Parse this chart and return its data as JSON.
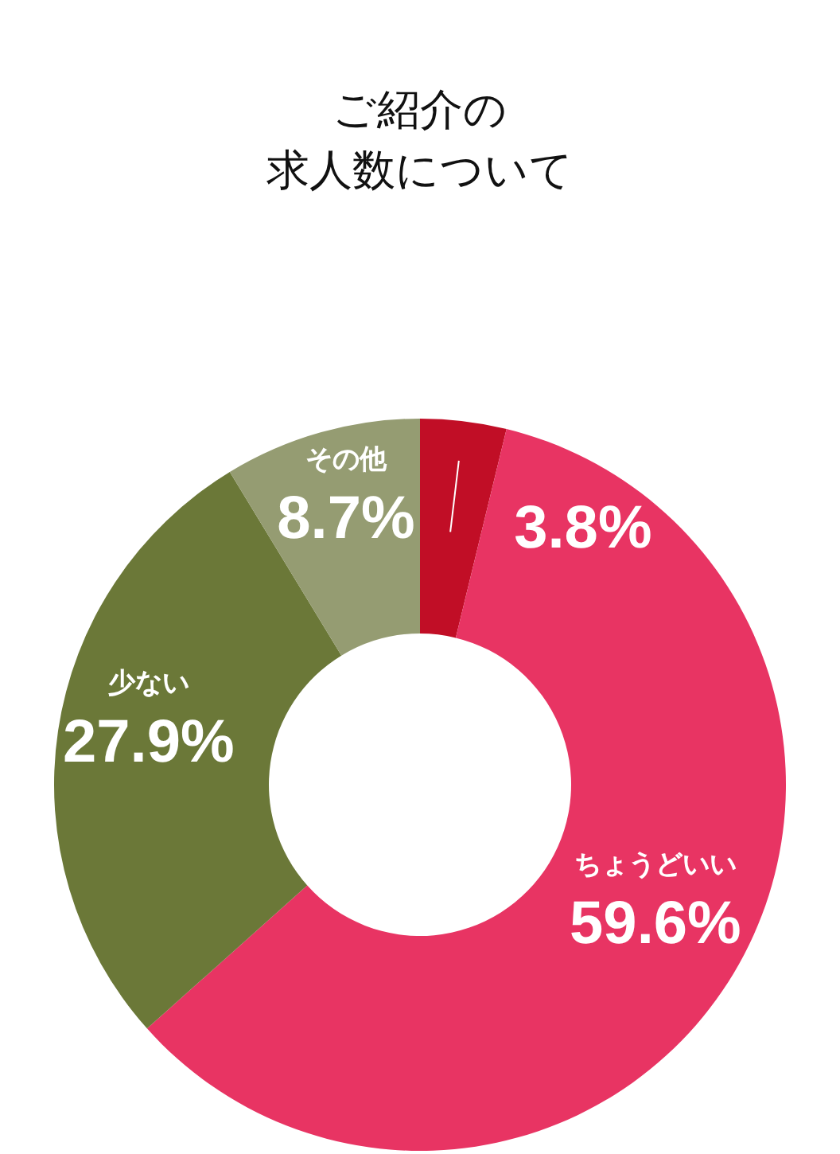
{
  "chart_data": {
    "type": "donut",
    "title": "ご紹介の求人数について",
    "categories": [
      null,
      "ちょうどいい",
      "少ない",
      "その他"
    ],
    "values": [
      3.8,
      59.6,
      27.9,
      8.7
    ],
    "colors": [
      "#c10e26",
      "#e83463",
      "#6b7838",
      "#959c72"
    ],
    "value_labels": [
      "3.8%",
      "59.6%",
      "27.9%",
      "8.7%"
    ],
    "legend": false
  }
}
